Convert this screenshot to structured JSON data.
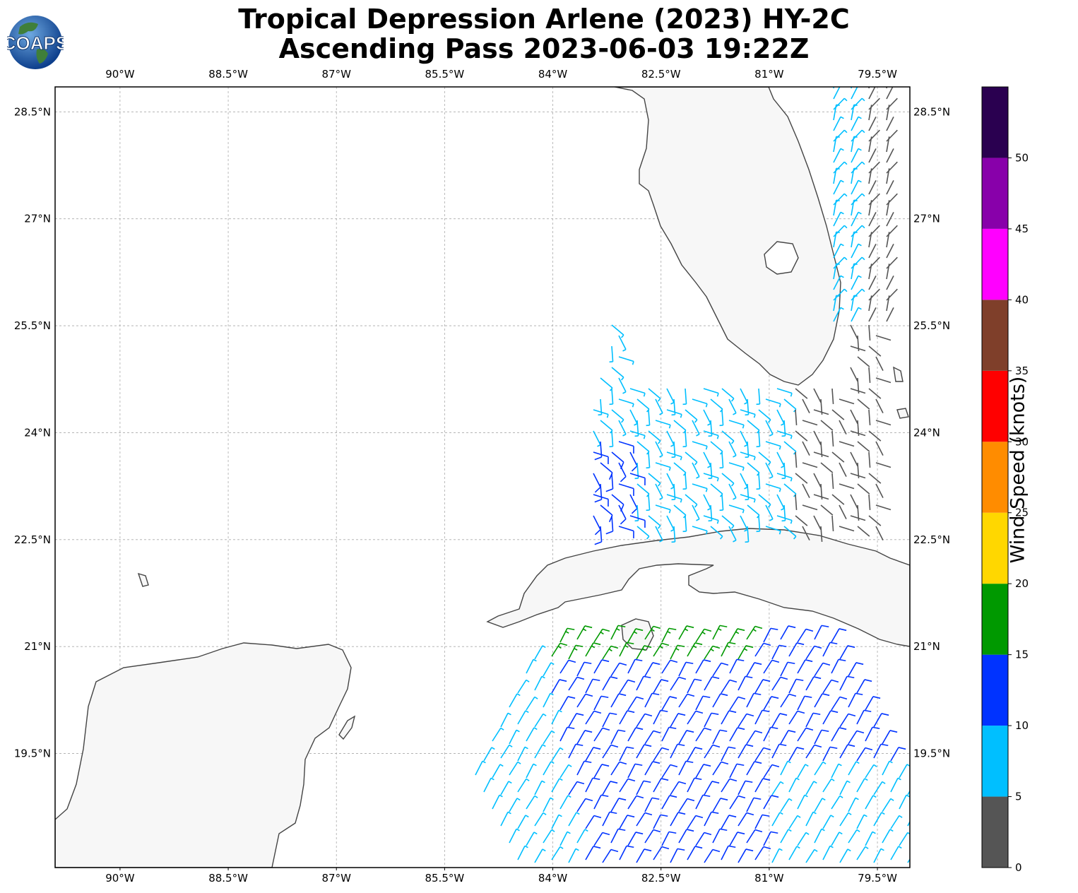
{
  "title_line1": "Tropical Depression Arlene (2023) HY-2C",
  "title_line2": "Ascending Pass 2023-06-03 19:22Z",
  "logo_text": "COAPS",
  "colorbar": {
    "label": "Wind Speed (knots)",
    "ticks": [
      "0",
      "5",
      "10",
      "15",
      "20",
      "25",
      "30",
      "35",
      "40",
      "45",
      "50"
    ],
    "bins": [
      {
        "min": 0,
        "max": 5,
        "color": "#555555"
      },
      {
        "min": 5,
        "max": 10,
        "color": "#00bfff"
      },
      {
        "min": 10,
        "max": 15,
        "color": "#0033ff"
      },
      {
        "min": 15,
        "max": 20,
        "color": "#009900"
      },
      {
        "min": 20,
        "max": 25,
        "color": "#ffd700"
      },
      {
        "min": 25,
        "max": 30,
        "color": "#ff8c00"
      },
      {
        "min": 30,
        "max": 35,
        "color": "#ff0000"
      },
      {
        "min": 35,
        "max": 40,
        "color": "#7f3f2a"
      },
      {
        "min": 40,
        "max": 45,
        "color": "#ff00ff"
      },
      {
        "min": 45,
        "max": 50,
        "color": "#8800aa"
      },
      {
        "min": 50,
        "max": 55,
        "color": "#2a0050"
      }
    ]
  },
  "map": {
    "lon_range": [
      -90.9,
      -79.05
    ],
    "lat_range": [
      17.9,
      28.85
    ],
    "lon_ticks": [
      {
        "value": -90.0,
        "label": "90°W"
      },
      {
        "value": -88.5,
        "label": "88.5°W"
      },
      {
        "value": -87.0,
        "label": "87°W"
      },
      {
        "value": -85.5,
        "label": "85.5°W"
      },
      {
        "value": -84.0,
        "label": "84°W"
      },
      {
        "value": -82.5,
        "label": "82.5°W"
      },
      {
        "value": -81.0,
        "label": "81°W"
      },
      {
        "value": -79.5,
        "label": "79.5°W"
      }
    ],
    "lat_ticks": [
      {
        "value": 28.5,
        "label": "28.5°N"
      },
      {
        "value": 27.0,
        "label": "27°N"
      },
      {
        "value": 25.5,
        "label": "25.5°N"
      },
      {
        "value": 24.0,
        "label": "24°N"
      },
      {
        "value": 22.5,
        "label": "22.5°N"
      },
      {
        "value": 21.0,
        "label": "21°N"
      },
      {
        "value": 19.5,
        "label": "19.5°N"
      }
    ]
  }
}
